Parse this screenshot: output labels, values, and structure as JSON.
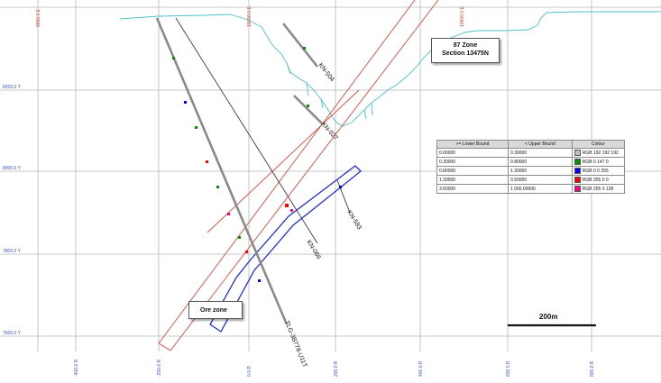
{
  "callout": {
    "zone_line1": "87 Zone",
    "zone_line2": "Section 13475N",
    "ore": "Ore zone"
  },
  "scale_bar": {
    "label": "200m"
  },
  "elevation_labels": [
    "8200.0 Y",
    "8000.0 Y",
    "7800.0 Y",
    "7600.0 Y"
  ],
  "easting_top_labels": [
    "9500.0 E",
    "10000.0 E",
    "10500.0 E"
  ],
  "easting_bottom_labels": [
    "-400.0 R",
    "-200.0 R",
    "0.0 R",
    "200.0 R",
    "400.0 R",
    "600.0 R",
    "800.0 R"
  ],
  "holes": [
    {
      "name": "KN-504"
    },
    {
      "name": "KN-027"
    },
    {
      "name": "KN-593"
    },
    {
      "name": "KN-066"
    },
    {
      "name": "TLG-3B778-U11T"
    }
  ],
  "legend": {
    "headers": [
      ">= Lower Bound",
      "< Upper Bound",
      "Colour"
    ],
    "rows": [
      {
        "lower": "0.00000",
        "upper": "0.30000",
        "colour": "RGB 192 192 192",
        "swatch": "#c0c0c0"
      },
      {
        "lower": "0.30000",
        "upper": "0.80000",
        "colour": "RGB 0 147 0",
        "swatch": "#009300"
      },
      {
        "lower": "0.80000",
        "upper": "1.30000",
        "colour": "RGB 0 0 255",
        "swatch": "#0000ff"
      },
      {
        "lower": "1.30000",
        "upper": "3.50000",
        "colour": "RGB 255 0 0",
        "swatch": "#ff0000"
      },
      {
        "lower": "3.50000",
        "upper": "1 000.00000",
        "colour": "RGB 255 0 128",
        "swatch": "#ff0080"
      }
    ]
  },
  "colors": {
    "topography": "#4fc1c8",
    "envelope": "#d9473a",
    "ore_zone": "#1f2fd6",
    "grid": "#b8b8b8"
  }
}
